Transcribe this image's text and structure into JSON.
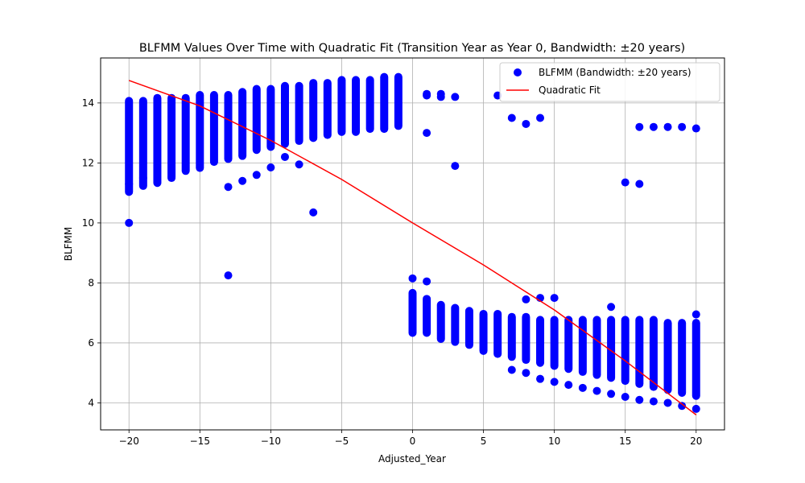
{
  "chart_data": {
    "type": "scatter",
    "title": "BLFMM Values Over Time with Quadratic Fit (Transition Year as Year 0, Bandwidth: ±20 years)",
    "xlabel": "Adjusted_Year",
    "ylabel": "BLFMM",
    "xlim": [
      -22,
      22
    ],
    "ylim": [
      3.1,
      15.5
    ],
    "xticks": [
      -20,
      -15,
      -10,
      -5,
      0,
      5,
      10,
      15,
      20
    ],
    "yticks": [
      4,
      6,
      8,
      10,
      12,
      14
    ],
    "grid": true,
    "legend_position": "top-right",
    "colors": {
      "scatter": "#0000ff",
      "fit": "#ff0000"
    },
    "series": [
      {
        "name": "BLFMM (Bandwidth: ±20 years)",
        "kind": "scatter",
        "bands": [
          {
            "x": -20,
            "min": 10.9,
            "max": 14.2
          },
          {
            "x": -19,
            "min": 11.1,
            "max": 14.2
          },
          {
            "x": -18,
            "min": 11.2,
            "max": 14.3
          },
          {
            "x": -17,
            "min": 11.4,
            "max": 14.3
          },
          {
            "x": -16,
            "min": 11.6,
            "max": 14.3
          },
          {
            "x": -15,
            "min": 11.7,
            "max": 14.4
          },
          {
            "x": -14,
            "min": 11.9,
            "max": 14.4
          },
          {
            "x": -13,
            "min": 12.0,
            "max": 14.4
          },
          {
            "x": -12,
            "min": 12.1,
            "max": 14.5
          },
          {
            "x": -11,
            "min": 12.3,
            "max": 14.6
          },
          {
            "x": -10,
            "min": 12.4,
            "max": 14.6
          },
          {
            "x": -9,
            "min": 12.5,
            "max": 14.7
          },
          {
            "x": -8,
            "min": 12.6,
            "max": 14.7
          },
          {
            "x": -7,
            "min": 12.7,
            "max": 14.8
          },
          {
            "x": -6,
            "min": 12.8,
            "max": 14.8
          },
          {
            "x": -5,
            "min": 12.9,
            "max": 14.9
          },
          {
            "x": -4,
            "min": 12.9,
            "max": 14.9
          },
          {
            "x": -3,
            "min": 13.0,
            "max": 14.9
          },
          {
            "x": -2,
            "min": 13.0,
            "max": 15.0
          },
          {
            "x": -1,
            "min": 13.1,
            "max": 15.0
          },
          {
            "x": 0,
            "min": 6.2,
            "max": 7.8
          },
          {
            "x": 1,
            "min": 6.2,
            "max": 7.6
          },
          {
            "x": 2,
            "min": 6.0,
            "max": 7.4
          },
          {
            "x": 3,
            "min": 5.9,
            "max": 7.3
          },
          {
            "x": 4,
            "min": 5.8,
            "max": 7.2
          },
          {
            "x": 5,
            "min": 5.6,
            "max": 7.1
          },
          {
            "x": 6,
            "min": 5.5,
            "max": 7.1
          },
          {
            "x": 7,
            "min": 5.4,
            "max": 7.0
          },
          {
            "x": 8,
            "min": 5.3,
            "max": 7.0
          },
          {
            "x": 9,
            "min": 5.2,
            "max": 6.9
          },
          {
            "x": 10,
            "min": 5.1,
            "max": 6.9
          },
          {
            "x": 11,
            "min": 5.0,
            "max": 6.9
          },
          {
            "x": 12,
            "min": 4.9,
            "max": 6.9
          },
          {
            "x": 13,
            "min": 4.8,
            "max": 6.9
          },
          {
            "x": 14,
            "min": 4.7,
            "max": 6.9
          },
          {
            "x": 15,
            "min": 4.6,
            "max": 6.9
          },
          {
            "x": 16,
            "min": 4.5,
            "max": 6.9
          },
          {
            "x": 17,
            "min": 4.4,
            "max": 6.9
          },
          {
            "x": 18,
            "min": 4.3,
            "max": 6.8
          },
          {
            "x": 19,
            "min": 4.2,
            "max": 6.8
          },
          {
            "x": 20,
            "min": 4.1,
            "max": 6.8
          }
        ],
        "points": [
          [
            -20,
            10.0
          ],
          [
            -20,
            11.3
          ],
          [
            -19,
            11.5
          ],
          [
            -17,
            11.5
          ],
          [
            -13,
            8.25
          ],
          [
            -13,
            11.2
          ],
          [
            -12,
            11.4
          ],
          [
            -11,
            11.6
          ],
          [
            -10,
            11.85
          ],
          [
            -9,
            12.2
          ],
          [
            -8,
            11.95
          ],
          [
            -7,
            10.35
          ],
          [
            0,
            8.15
          ],
          [
            1,
            8.05
          ],
          [
            1,
            13.0
          ],
          [
            1,
            14.25
          ],
          [
            1,
            14.3
          ],
          [
            2,
            14.3
          ],
          [
            2,
            14.2
          ],
          [
            3,
            11.9
          ],
          [
            3,
            14.2
          ],
          [
            6,
            14.25
          ],
          [
            7,
            13.5
          ],
          [
            8,
            13.3
          ],
          [
            9,
            13.5
          ],
          [
            8,
            7.45
          ],
          [
            9,
            7.5
          ],
          [
            10,
            7.5
          ],
          [
            7,
            5.1
          ],
          [
            8,
            5.0
          ],
          [
            9,
            4.8
          ],
          [
            10,
            4.7
          ],
          [
            11,
            4.6
          ],
          [
            12,
            4.5
          ],
          [
            13,
            4.4
          ],
          [
            14,
            4.3
          ],
          [
            15,
            4.2
          ],
          [
            16,
            4.1
          ],
          [
            17,
            4.05
          ],
          [
            18,
            4.0
          ],
          [
            19,
            3.9
          ],
          [
            20,
            3.8
          ],
          [
            14,
            7.2
          ],
          [
            15,
            11.35
          ],
          [
            16,
            11.3
          ],
          [
            16,
            13.2
          ],
          [
            17,
            13.2
          ],
          [
            18,
            13.2
          ],
          [
            19,
            13.2
          ],
          [
            20,
            13.15
          ],
          [
            20,
            6.95
          ]
        ]
      },
      {
        "name": "Quadratic Fit",
        "kind": "line",
        "x": [
          -20,
          -15,
          -10,
          -5,
          0,
          5,
          10,
          15,
          20
        ],
        "y": [
          14.75,
          13.9,
          12.75,
          11.45,
          10.0,
          8.6,
          7.1,
          5.4,
          3.6
        ]
      }
    ]
  }
}
